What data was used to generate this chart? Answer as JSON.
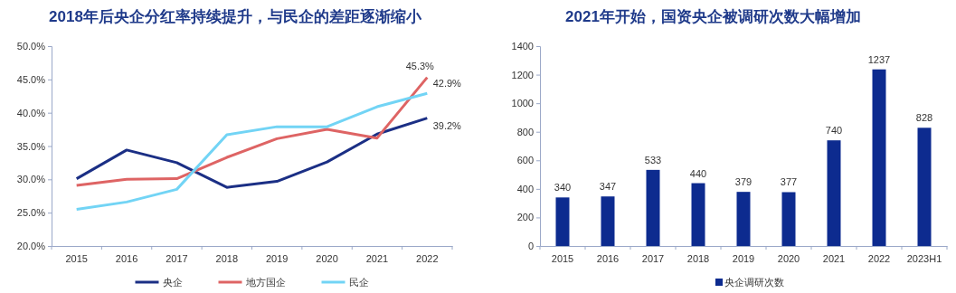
{
  "chart_data": [
    {
      "type": "line",
      "title": "2018年后央企分红率持续提升，与民企的差距逐渐缩小",
      "categories": [
        "2015",
        "2016",
        "2017",
        "2018",
        "2019",
        "2020",
        "2021",
        "2022"
      ],
      "ylim": [
        20,
        50
      ],
      "yticks": [
        {
          "value": 20,
          "label": "20.0%"
        },
        {
          "value": 25,
          "label": "25.0%"
        },
        {
          "value": 30,
          "label": "30.0%"
        },
        {
          "value": 35,
          "label": "35.0%"
        },
        {
          "value": 40,
          "label": "40.0%"
        },
        {
          "value": 45,
          "label": "45.0%"
        },
        {
          "value": 50,
          "label": "50.0%"
        }
      ],
      "grid": false,
      "legend": "bottom",
      "marker": "none",
      "line_style": "solid",
      "series": [
        {
          "name": "央企",
          "color": "#1b2f85",
          "values": [
            30.1,
            34.4,
            32.5,
            28.8,
            29.7,
            32.6,
            36.8,
            39.2
          ],
          "value_labels": [
            null,
            null,
            null,
            null,
            null,
            null,
            null,
            "39.2%"
          ]
        },
        {
          "name": "地方国企",
          "color": "#de6464",
          "values": [
            29.1,
            30.0,
            30.1,
            33.3,
            36.1,
            37.5,
            36.2,
            45.3
          ],
          "value_labels": [
            null,
            null,
            null,
            null,
            null,
            null,
            null,
            "45.3%"
          ]
        },
        {
          "name": "民企",
          "color": "#72d4f5",
          "values": [
            25.5,
            26.6,
            28.5,
            36.7,
            37.9,
            37.9,
            40.9,
            42.9
          ],
          "value_labels": [
            null,
            null,
            null,
            null,
            null,
            null,
            null,
            "42.9%"
          ]
        }
      ]
    },
    {
      "type": "bar",
      "title": "2021年开始，国资央企被调研次数大幅增加",
      "categories": [
        "2015",
        "2016",
        "2017",
        "2018",
        "2019",
        "2020",
        "2021",
        "2022",
        "2023H1"
      ],
      "ylim": [
        0,
        1400
      ],
      "yticks": [
        0,
        200,
        400,
        600,
        800,
        1000,
        1200,
        1400
      ],
      "grid": false,
      "legend": "bottom",
      "data_labels": true,
      "series": [
        {
          "name": "央企调研次数",
          "color": "#0d2b8f",
          "values": [
            340,
            347,
            533,
            440,
            379,
            377,
            740,
            1237,
            828
          ]
        }
      ]
    }
  ]
}
